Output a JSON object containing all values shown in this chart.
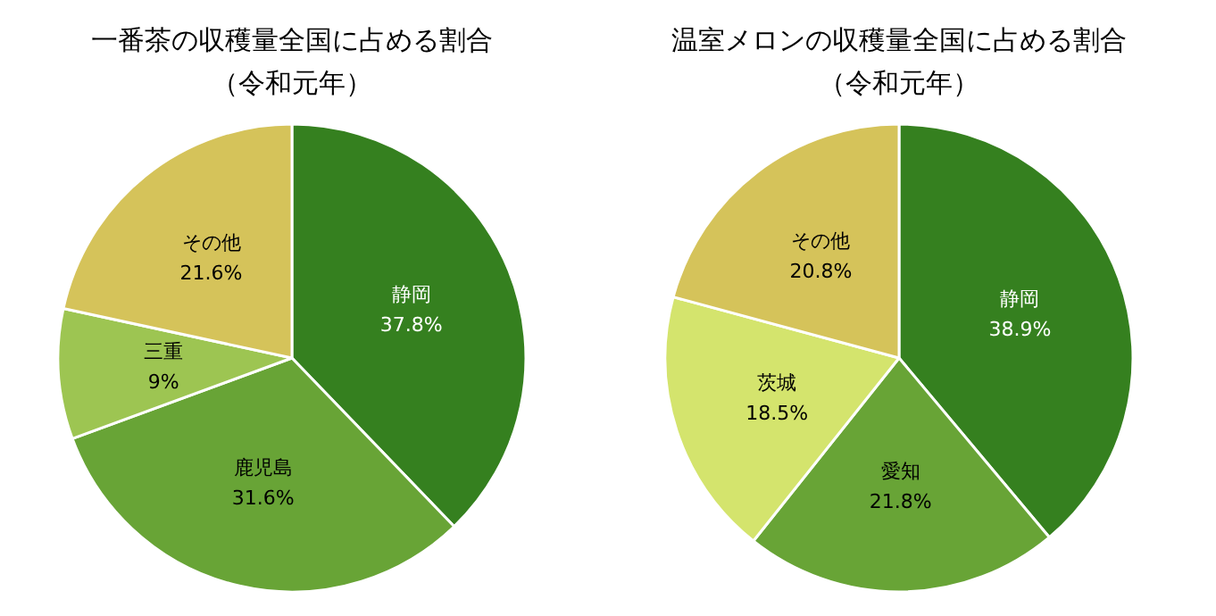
{
  "chart_data": [
    {
      "type": "pie",
      "title": "一番茶の収穫量全国に占める割合",
      "subtitle": "（令和元年）",
      "categories": [
        "静岡",
        "鹿児島",
        "三重",
        "その他"
      ],
      "values": [
        37.8,
        31.6,
        9,
        21.6
      ],
      "colors": [
        "#35801f",
        "#68a436",
        "#9dc552",
        "#d5c35a"
      ],
      "value_labels": [
        "37.8%",
        "31.6%",
        "9%",
        "21.6%"
      ]
    },
    {
      "type": "pie",
      "title": "温室メロンの収穫量全国に占める割合",
      "subtitle": "（令和元年）",
      "categories": [
        "静岡",
        "愛知",
        "茨城",
        "その他"
      ],
      "values": [
        38.9,
        21.8,
        18.5,
        20.8
      ],
      "colors": [
        "#35801f",
        "#68a436",
        "#d4e46d",
        "#d5c35a"
      ],
      "value_labels": [
        "38.9%",
        "21.8%",
        "18.5%",
        "20.8%"
      ]
    }
  ]
}
